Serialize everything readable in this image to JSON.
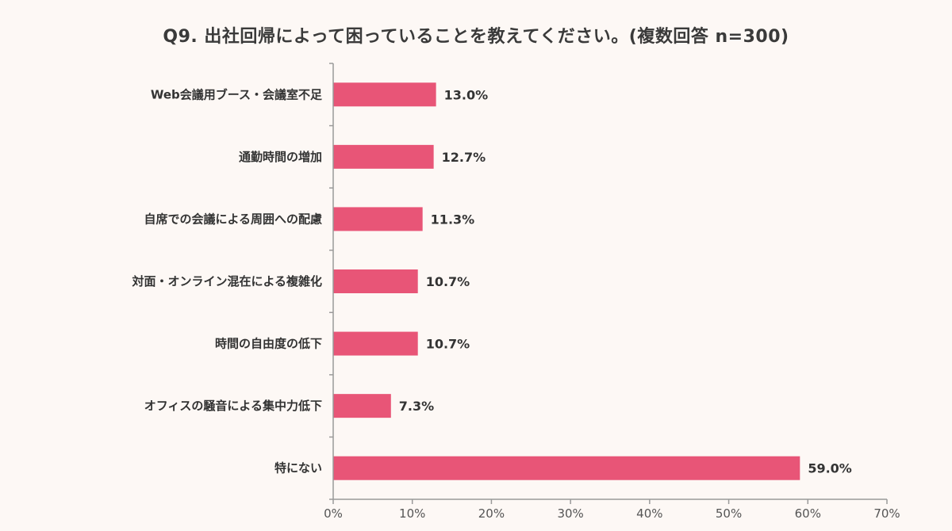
{
  "chart_data": {
    "type": "bar",
    "orientation": "horizontal",
    "title": "Q9. 出社回帰によって困っていることを教えてください。(複数回答 n=300)",
    "categories": [
      "Web会議用ブース・会議室不足",
      "通勤時間の増加",
      "自席での会議による周囲への配慮",
      "対面・オンライン混在による複雑化",
      "時間の自由度の低下",
      "オフィスの騒音による集中力低下",
      "特にない"
    ],
    "values": [
      13.0,
      12.7,
      11.3,
      10.7,
      10.7,
      7.3,
      59.0
    ],
    "value_labels": [
      "13.0%",
      "12.7%",
      "11.3%",
      "10.7%",
      "10.7%",
      "7.3%",
      "59.0%"
    ],
    "xlim": [
      0,
      70
    ],
    "xticks": [
      "0%",
      "10%",
      "20%",
      "30%",
      "40%",
      "50%",
      "60%",
      "70%"
    ],
    "xlabel": "",
    "ylabel": "",
    "grid": false,
    "legend": "none",
    "bar_color": "#e85577",
    "axis_color": "#9a9a9a",
    "background": "#fdf8f5"
  }
}
